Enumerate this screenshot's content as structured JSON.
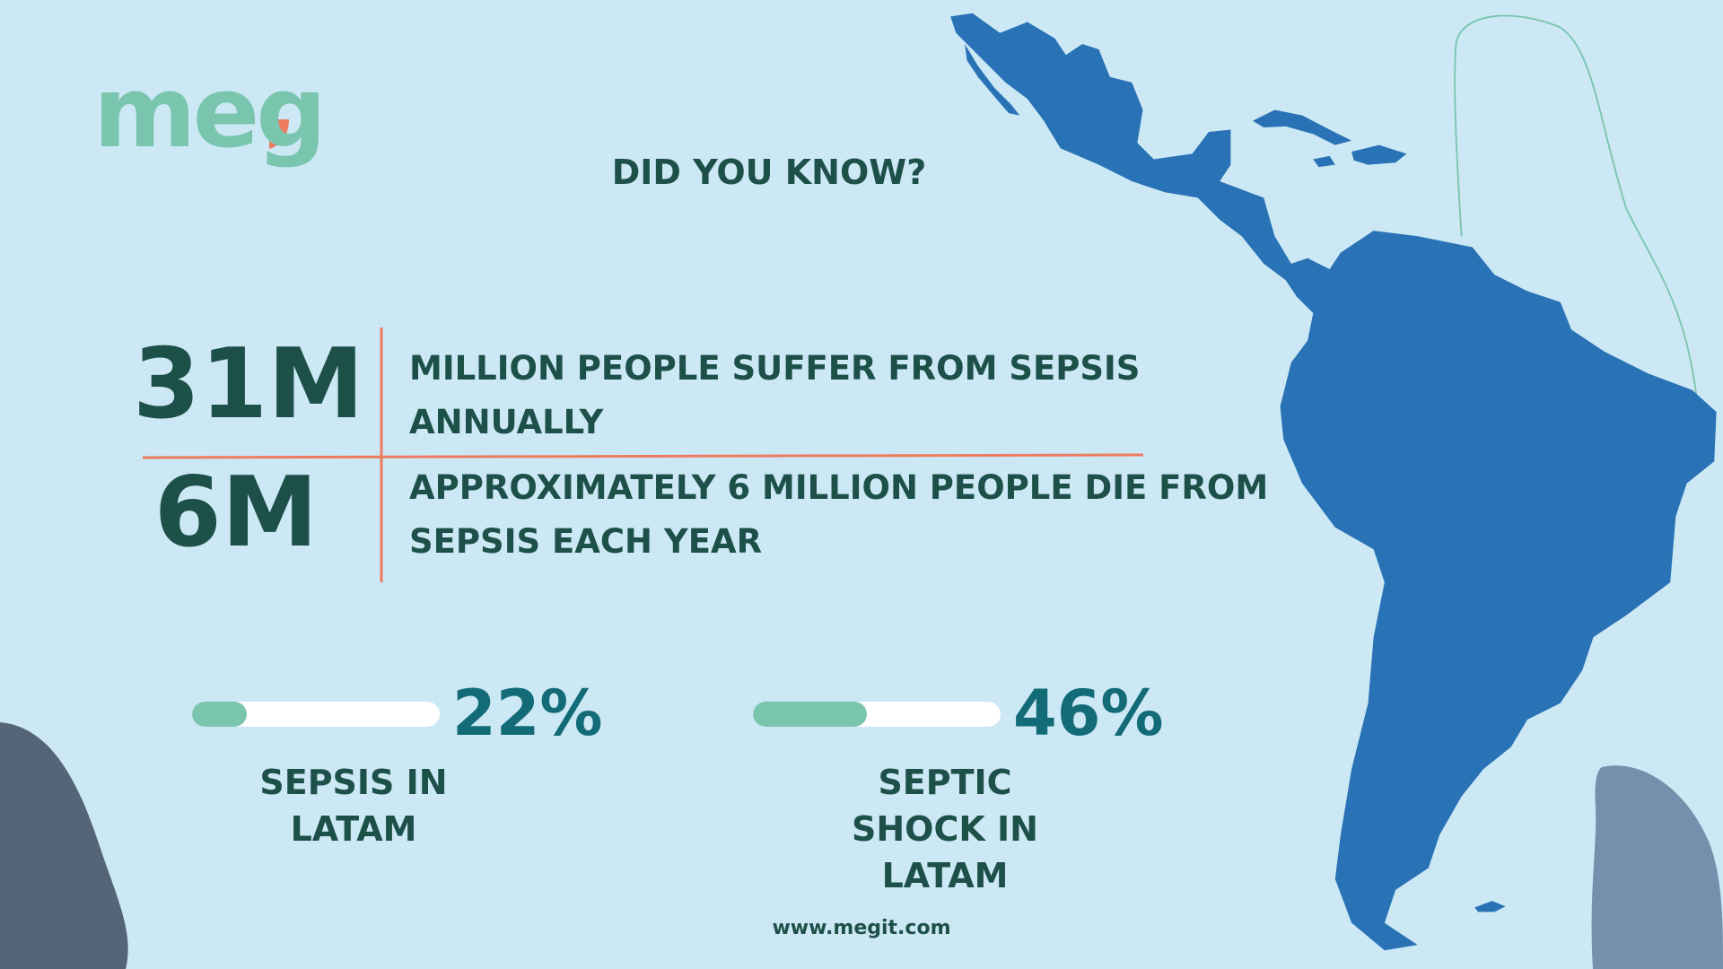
{
  "logo": "meg",
  "title": "DID YOU KNOW?",
  "stats": [
    {
      "figure": "31M",
      "text": "MILLION PEOPLE SUFFER FROM SEPSIS ANNUALLY"
    },
    {
      "figure": "6M",
      "text": "APPROXIMATELY 6 MILLION PEOPLE DIE FROM SEPSIS EACH YEAR"
    }
  ],
  "gauges": [
    {
      "value": 22,
      "value_label": "22%",
      "label": "SEPSIS IN LATAM",
      "max": 100
    },
    {
      "value": 46,
      "value_label": "46%",
      "label": "SEPTIC SHOCK IN LATAM",
      "max": 100
    }
  ],
  "footer": "www.megit.com"
}
